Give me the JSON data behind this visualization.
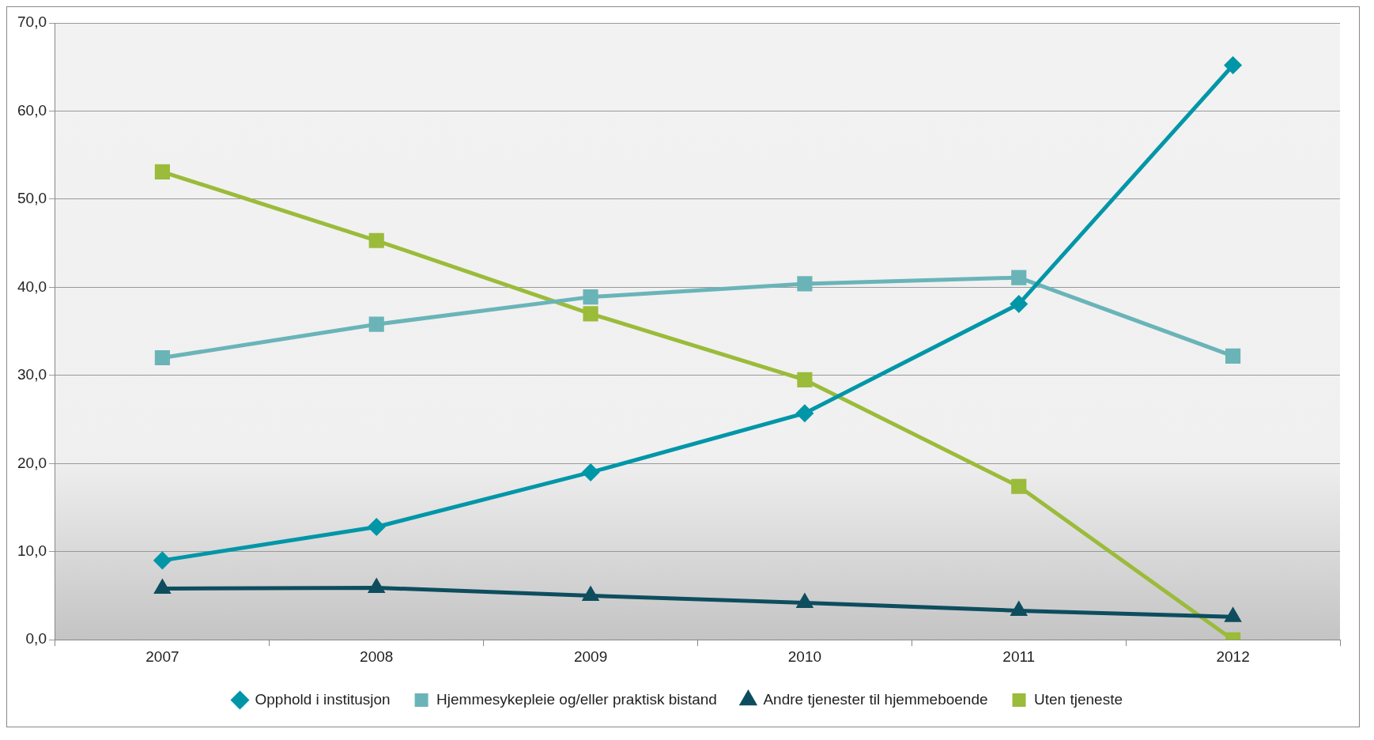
{
  "chart_data": {
    "type": "line",
    "categories": [
      "2007",
      "2008",
      "2009",
      "2010",
      "2011",
      "2012"
    ],
    "series": [
      {
        "name": "Opphold i institusjon",
        "color": "#0096a8",
        "marker": "diamond",
        "values": [
          9.0,
          12.8,
          19.0,
          25.7,
          38.1,
          65.2
        ]
      },
      {
        "name": "Hjemmesykepleie og/eller praktisk bistand",
        "color": "#6ab4b8",
        "marker": "square",
        "values": [
          32.0,
          35.8,
          38.9,
          40.4,
          41.1,
          32.2
        ]
      },
      {
        "name": "Andre tjenester til hjemmeboende",
        "color": "#0d4d5e",
        "marker": "triangle",
        "values": [
          5.8,
          5.9,
          5.0,
          4.2,
          3.3,
          2.6
        ]
      },
      {
        "name": "Uten tjeneste",
        "color": "#9bbb3a",
        "marker": "square",
        "values": [
          53.1,
          45.3,
          37.0,
          29.5,
          17.4,
          0.0
        ]
      }
    ],
    "ylim": [
      0,
      70
    ],
    "yticks": [
      {
        "value": 0,
        "label": "0,0"
      },
      {
        "value": 10,
        "label": "10,0"
      },
      {
        "value": 20,
        "label": "20,0"
      },
      {
        "value": 30,
        "label": "30,0"
      },
      {
        "value": 40,
        "label": "40,0"
      },
      {
        "value": 50,
        "label": "50,0"
      },
      {
        "value": 60,
        "label": "60,0"
      },
      {
        "value": 70,
        "label": "70,0"
      }
    ],
    "grid": "y",
    "legend": "bottom",
    "line_style": "solid"
  }
}
